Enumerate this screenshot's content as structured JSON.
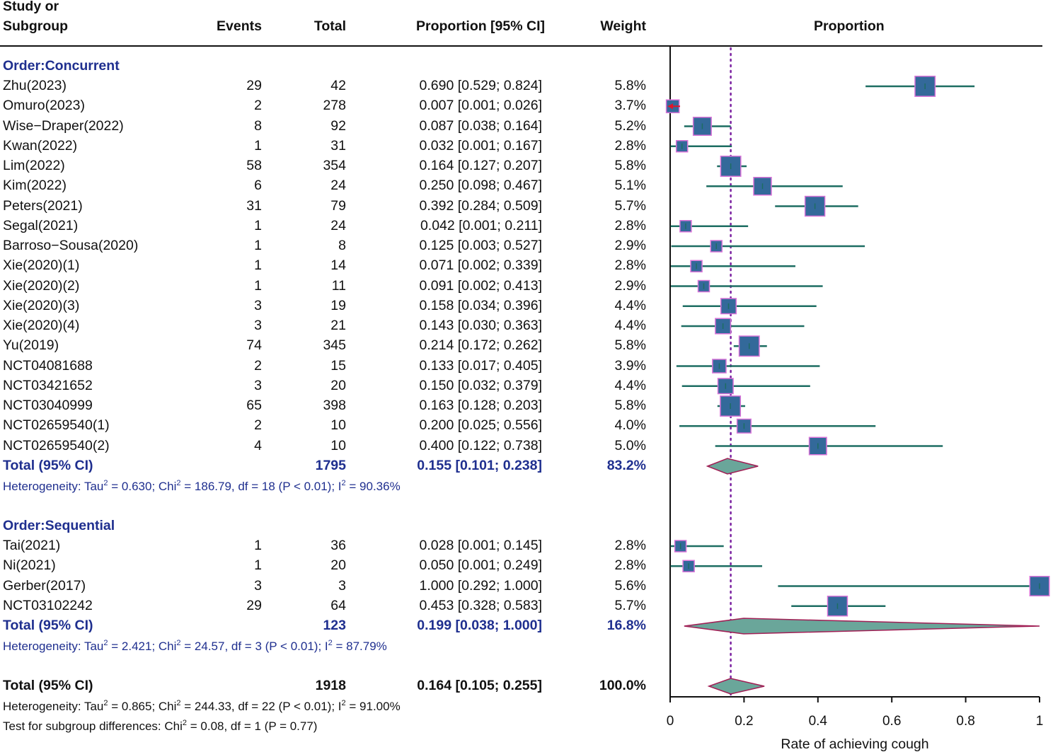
{
  "headers": {
    "study_line1": "Study or",
    "study_line2": "Subgroup",
    "events": "Events",
    "total": "Total",
    "proportion_ci": "Proportion [95% CI]",
    "weight": "Weight",
    "plot": "Proportion"
  },
  "subgroups": [
    {
      "label": "Order:Concurrent",
      "studies": [
        {
          "name": "Zhu(2023)",
          "events": "29",
          "total": "42",
          "ci": "0.690 [0.529; 0.824]",
          "weight": "5.8%",
          "est": 0.69,
          "lo": 0.529,
          "hi": 0.824,
          "w": 5.8
        },
        {
          "name": "Omuro(2023)",
          "events": "2",
          "total": "278",
          "ci": "0.007 [0.001; 0.026]",
          "weight": "3.7%",
          "est": 0.007,
          "lo": 0.001,
          "hi": 0.026,
          "w": 3.7
        },
        {
          "name": "Wise−Draper(2022)",
          "events": "8",
          "total": "92",
          "ci": "0.087 [0.038; 0.164]",
          "weight": "5.2%",
          "est": 0.087,
          "lo": 0.038,
          "hi": 0.164,
          "w": 5.2
        },
        {
          "name": "Kwan(2022)",
          "events": "1",
          "total": "31",
          "ci": "0.032 [0.001; 0.167]",
          "weight": "2.8%",
          "est": 0.032,
          "lo": 0.001,
          "hi": 0.167,
          "w": 2.8
        },
        {
          "name": "Lim(2022)",
          "events": "58",
          "total": "354",
          "ci": "0.164 [0.127; 0.207]",
          "weight": "5.8%",
          "est": 0.164,
          "lo": 0.127,
          "hi": 0.207,
          "w": 5.8
        },
        {
          "name": "Kim(2022)",
          "events": "6",
          "total": "24",
          "ci": "0.250 [0.098; 0.467]",
          "weight": "5.1%",
          "est": 0.25,
          "lo": 0.098,
          "hi": 0.467,
          "w": 5.1
        },
        {
          "name": "Peters(2021)",
          "events": "31",
          "total": "79",
          "ci": "0.392 [0.284; 0.509]",
          "weight": "5.7%",
          "est": 0.392,
          "lo": 0.284,
          "hi": 0.509,
          "w": 5.7
        },
        {
          "name": "Segal(2021)",
          "events": "1",
          "total": "24",
          "ci": "0.042 [0.001; 0.211]",
          "weight": "2.8%",
          "est": 0.042,
          "lo": 0.001,
          "hi": 0.211,
          "w": 2.8
        },
        {
          "name": "Barroso−Sousa(2020)",
          "events": "1",
          "total": "8",
          "ci": "0.125 [0.003; 0.527]",
          "weight": "2.9%",
          "est": 0.125,
          "lo": 0.003,
          "hi": 0.527,
          "w": 2.9
        },
        {
          "name": "Xie(2020)(1)",
          "events": "1",
          "total": "14",
          "ci": "0.071 [0.002; 0.339]",
          "weight": "2.8%",
          "est": 0.071,
          "lo": 0.002,
          "hi": 0.339,
          "w": 2.8
        },
        {
          "name": "Xie(2020)(2)",
          "events": "1",
          "total": "11",
          "ci": "0.091 [0.002; 0.413]",
          "weight": "2.9%",
          "est": 0.091,
          "lo": 0.002,
          "hi": 0.413,
          "w": 2.9
        },
        {
          "name": "Xie(2020)(3)",
          "events": "3",
          "total": "19",
          "ci": "0.158 [0.034; 0.396]",
          "weight": "4.4%",
          "est": 0.158,
          "lo": 0.034,
          "hi": 0.396,
          "w": 4.4
        },
        {
          "name": "Xie(2020)(4)",
          "events": "3",
          "total": "21",
          "ci": "0.143 [0.030; 0.363]",
          "weight": "4.4%",
          "est": 0.143,
          "lo": 0.03,
          "hi": 0.363,
          "w": 4.4
        },
        {
          "name": "Yu(2019)",
          "events": "74",
          "total": "345",
          "ci": "0.214 [0.172; 0.262]",
          "weight": "5.8%",
          "est": 0.214,
          "lo": 0.172,
          "hi": 0.262,
          "w": 5.8
        },
        {
          "name": "NCT04081688",
          "events": "2",
          "total": "15",
          "ci": "0.133 [0.017; 0.405]",
          "weight": "3.9%",
          "est": 0.133,
          "lo": 0.017,
          "hi": 0.405,
          "w": 3.9
        },
        {
          "name": "NCT03421652",
          "events": "3",
          "total": "20",
          "ci": "0.150 [0.032; 0.379]",
          "weight": "4.4%",
          "est": 0.15,
          "lo": 0.032,
          "hi": 0.379,
          "w": 4.4
        },
        {
          "name": "NCT03040999",
          "events": "65",
          "total": "398",
          "ci": "0.163 [0.128; 0.203]",
          "weight": "5.8%",
          "est": 0.163,
          "lo": 0.128,
          "hi": 0.203,
          "w": 5.8
        },
        {
          "name": "NCT02659540(1)",
          "events": "2",
          "total": "10",
          "ci": "0.200 [0.025; 0.556]",
          "weight": "4.0%",
          "est": 0.2,
          "lo": 0.025,
          "hi": 0.556,
          "w": 4.0
        },
        {
          "name": "NCT02659540(2)",
          "events": "4",
          "total": "10",
          "ci": "0.400 [0.122; 0.738]",
          "weight": "5.0%",
          "est": 0.4,
          "lo": 0.122,
          "hi": 0.738,
          "w": 5.0
        }
      ],
      "total": {
        "label": "Total (95% CI)",
        "total": "1795",
        "ci": "0.155 [0.101; 0.238]",
        "weight": "83.2%",
        "est": 0.155,
        "lo": 0.101,
        "hi": 0.238
      },
      "het": {
        "prefix": "Heterogeneity: Tau",
        "tau": " = 0.630; Chi",
        "chi": " = 186.79, df = 18 (P < 0.01); I",
        "i2": " = 90.36%"
      }
    },
    {
      "label": "Order:Sequential",
      "studies": [
        {
          "name": "Tai(2021)",
          "events": "1",
          "total": "36",
          "ci": "0.028 [0.001; 0.145]",
          "weight": "2.8%",
          "est": 0.028,
          "lo": 0.001,
          "hi": 0.145,
          "w": 2.8
        },
        {
          "name": "Ni(2021)",
          "events": "1",
          "total": "20",
          "ci": "0.050 [0.001; 0.249]",
          "weight": "2.8%",
          "est": 0.05,
          "lo": 0.001,
          "hi": 0.249,
          "w": 2.8
        },
        {
          "name": "Gerber(2017)",
          "events": "3",
          "total": "3",
          "ci": "1.000 [0.292; 1.000]",
          "weight": "5.6%",
          "est": 1.0,
          "lo": 0.292,
          "hi": 1.0,
          "w": 5.6
        },
        {
          "name": "NCT03102242",
          "events": "29",
          "total": "64",
          "ci": "0.453 [0.328; 0.583]",
          "weight": "5.7%",
          "est": 0.453,
          "lo": 0.328,
          "hi": 0.583,
          "w": 5.7
        }
      ],
      "total": {
        "label": "Total (95% CI)",
        "total": "123",
        "ci": "0.199 [0.038; 1.000]",
        "weight": "16.8%",
        "est": 0.199,
        "lo": 0.038,
        "hi": 1.0
      },
      "het": {
        "prefix": "Heterogeneity: Tau",
        "tau": " = 2.421; Chi",
        "chi": " = 24.57, df = 3 (P < 0.01); I",
        "i2": " = 87.79%"
      }
    }
  ],
  "overall": {
    "label": "Total (95% CI)",
    "total": "1918",
    "ci": "0.164 [0.105; 0.255]",
    "weight": "100.0%",
    "est": 0.164,
    "lo": 0.105,
    "hi": 0.255,
    "het": {
      "prefix": "Heterogeneity: Tau",
      "tau": " = 0.865; Chi",
      "chi": " = 244.33, df = 22 (P < 0.01); I",
      "i2": " = 91.00%"
    },
    "subgroup_test": {
      "prefix": "Test for subgroup differences: Chi",
      "rest": " = 0.08, df = 1 (P = 0.77)"
    }
  },
  "sup2": "2",
  "chart_data": {
    "type": "forest",
    "xlabel": "Rate of achieving cough",
    "xlim": [
      0,
      1
    ],
    "xticks": [
      0,
      0.2,
      0.4,
      0.6,
      0.8,
      1
    ],
    "xtick_labels": [
      "0",
      "0.2",
      "0.4",
      "0.6",
      "0.8",
      "1"
    ],
    "reference_line": 0.164,
    "colors": {
      "box": "#33699a",
      "box_border": "#d873d8",
      "ci_line": "#1d6d62",
      "diamond": "#6aa69a",
      "diamond_border": "#a11f55",
      "ref_line": "#7a1fa0",
      "arrow": "#e0162b"
    }
  }
}
